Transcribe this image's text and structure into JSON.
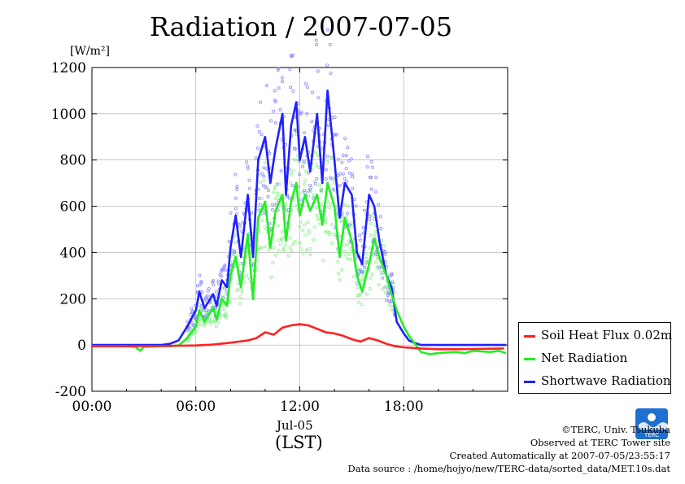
{
  "title": "Radiation / 2007-07-05",
  "unit_label": "[W/m²]",
  "colors": {
    "soil": "#ff2020",
    "net": "#22ee22",
    "shortwave": "#2020ff",
    "shortwave_points": "#8a8aff",
    "net_points": "#90f090",
    "logo": "#1f6fd0"
  },
  "chart_data": {
    "type": "line",
    "title": "Radiation / 2007-07-05",
    "ylabel": "[W/m²]",
    "xlabel": "(LST)",
    "xlim": [
      0,
      24
    ],
    "ylim": [
      -200,
      1200
    ],
    "yticks": [
      -200,
      0,
      200,
      400,
      600,
      800,
      1000,
      1200
    ],
    "xtick_values": [
      0,
      6,
      12,
      18
    ],
    "xtick_labels": [
      "00:00",
      "06:00",
      "12:00",
      "18:00"
    ],
    "date_label": "Jul-05",
    "grid": true,
    "legend_position": "right",
    "series": [
      {
        "name": "Soil Heat Flux 0.02m",
        "color": "#ff2020",
        "x": [
          0,
          2,
          4,
          5,
          6,
          7,
          8,
          9,
          9.5,
          10,
          10.5,
          11,
          11.5,
          12,
          12.5,
          13,
          13.5,
          14,
          14.5,
          15,
          15.5,
          16,
          16.5,
          17,
          17.5,
          18,
          19,
          20,
          21,
          22,
          23,
          23.8
        ],
        "y": [
          -5,
          -5,
          -4,
          -3,
          -2,
          2,
          10,
          20,
          30,
          55,
          45,
          75,
          85,
          90,
          85,
          70,
          55,
          50,
          40,
          25,
          15,
          30,
          20,
          5,
          -5,
          -10,
          -15,
          -18,
          -18,
          -17,
          -16,
          -15
        ]
      },
      {
        "name": "Net Radiation",
        "color": "#22ee22",
        "x": [
          0,
          2,
          2.5,
          2.8,
          3,
          4,
          4.5,
          5,
          5.5,
          6,
          6.2,
          6.5,
          7,
          7.2,
          7.5,
          7.8,
          8,
          8.3,
          8.6,
          9,
          9.3,
          9.6,
          10,
          10.3,
          10.6,
          11,
          11.2,
          11.5,
          11.8,
          12,
          12.3,
          12.6,
          13,
          13.3,
          13.6,
          14,
          14.3,
          14.6,
          15,
          15.3,
          15.6,
          16,
          16.3,
          16.6,
          17,
          17.3,
          17.6,
          18,
          18.3,
          18.6,
          19,
          19.5,
          20,
          21,
          21.5,
          22,
          23,
          23.5,
          23.9
        ],
        "y": [
          -5,
          -5,
          -8,
          -25,
          -8,
          -5,
          -5,
          -2,
          30,
          80,
          150,
          100,
          160,
          110,
          200,
          170,
          300,
          380,
          250,
          480,
          200,
          550,
          620,
          420,
          580,
          650,
          450,
          620,
          700,
          560,
          650,
          580,
          650,
          520,
          700,
          600,
          380,
          550,
          450,
          300,
          230,
          350,
          460,
          380,
          300,
          220,
          150,
          80,
          40,
          10,
          -30,
          -40,
          -35,
          -30,
          -35,
          -25,
          -30,
          -25,
          -35
        ]
      },
      {
        "name": "Shortwave Radiation",
        "color": "#2020ff",
        "x": [
          0,
          2,
          4,
          4.5,
          5,
          5.5,
          6,
          6.2,
          6.5,
          7,
          7.2,
          7.5,
          7.8,
          8,
          8.3,
          8.6,
          9,
          9.3,
          9.6,
          10,
          10.3,
          10.6,
          11,
          11.2,
          11.5,
          11.8,
          12,
          12.3,
          12.6,
          13,
          13.3,
          13.6,
          14,
          14.3,
          14.6,
          15,
          15.3,
          15.6,
          16,
          16.3,
          16.6,
          17,
          17.3,
          17.6,
          18,
          18.3,
          18.6,
          19,
          20,
          21,
          22,
          23,
          23.9
        ],
        "y": [
          0,
          0,
          0,
          5,
          20,
          80,
          150,
          230,
          160,
          220,
          170,
          280,
          250,
          420,
          560,
          380,
          650,
          380,
          800,
          900,
          700,
          850,
          1000,
          650,
          950,
          1050,
          800,
          900,
          750,
          1000,
          700,
          1100,
          800,
          550,
          700,
          650,
          400,
          350,
          650,
          600,
          450,
          300,
          250,
          100,
          50,
          20,
          10,
          0,
          0,
          0,
          0,
          0,
          0
        ]
      }
    ]
  },
  "legend": {
    "items": [
      {
        "label": "Soil Heat Flux 0.02m",
        "color": "#ff2020"
      },
      {
        "label": "Net Radiation",
        "color": "#22ee22"
      },
      {
        "label": "Shortwave Radiation",
        "color": "#2020ff"
      }
    ]
  },
  "axis": {
    "date_label": "Jul-05",
    "x_unit_label": "(LST)"
  },
  "credits": {
    "line1": "©TERC, Univ. Tsukuba",
    "line2": "Observed at TERC Tower site",
    "line3": "Created Automatically at 2007-07-05/23:55:17",
    "line4": "Data source : /home/hojyo/new/TERC-data/sorted_data/MET.10s.dat"
  },
  "logo": {
    "text": "TERC",
    "icon": "terc-logo-icon"
  }
}
